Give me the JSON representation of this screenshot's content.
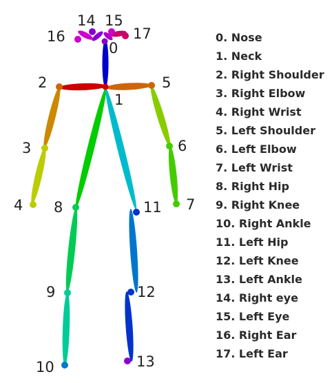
{
  "keypoints": [
    {
      "id": "0",
      "name": "0. Nose"
    },
    {
      "id": "1",
      "name": "1. Neck"
    },
    {
      "id": "2",
      "name": "2. Right Shoulder"
    },
    {
      "id": "3",
      "name": "3. Right Elbow"
    },
    {
      "id": "4",
      "name": "4. Right Wrist"
    },
    {
      "id": "5",
      "name": "5. Left Shoulder"
    },
    {
      "id": "6",
      "name": "6. Left Elbow"
    },
    {
      "id": "7",
      "name": "7. Left Wrist"
    },
    {
      "id": "8",
      "name": "8. Right Hip"
    },
    {
      "id": "9",
      "name": "9. Right Knee"
    },
    {
      "id": "10",
      "name": "10. Right Ankle"
    },
    {
      "id": "11",
      "name": "11. Left Hip"
    },
    {
      "id": "12",
      "name": "12. Left Knee"
    },
    {
      "id": "13",
      "name": "13. Left Ankle"
    },
    {
      "id": "14",
      "name": "14. Right eye"
    },
    {
      "id": "15",
      "name": "15. Left Eye"
    },
    {
      "id": "16",
      "name": "16. Right Ear"
    },
    {
      "id": "17",
      "name": "17. Left Ear"
    }
  ],
  "colors": {
    "neck_nose": "#0000cc",
    "right_shoulder_limb": "#cc0000",
    "left_shoulder_limb": "#cc6600",
    "right_upper_arm": "#cc8800",
    "right_forearm": "#bbcc00",
    "left_upper_arm": "#88cc00",
    "left_forearm": "#44cc00",
    "right_torso": "#00cc00",
    "right_thigh": "#00cc55",
    "right_shin": "#00cc99",
    "left_torso": "#00bbcc",
    "left_thigh": "#0077cc",
    "left_shin": "#0033cc",
    "nose_right_eye": "#8800cc",
    "right_eye_ear": "#cc00cc",
    "nose_left_eye": "#aa00cc",
    "left_eye_ear": "#cc0066"
  }
}
